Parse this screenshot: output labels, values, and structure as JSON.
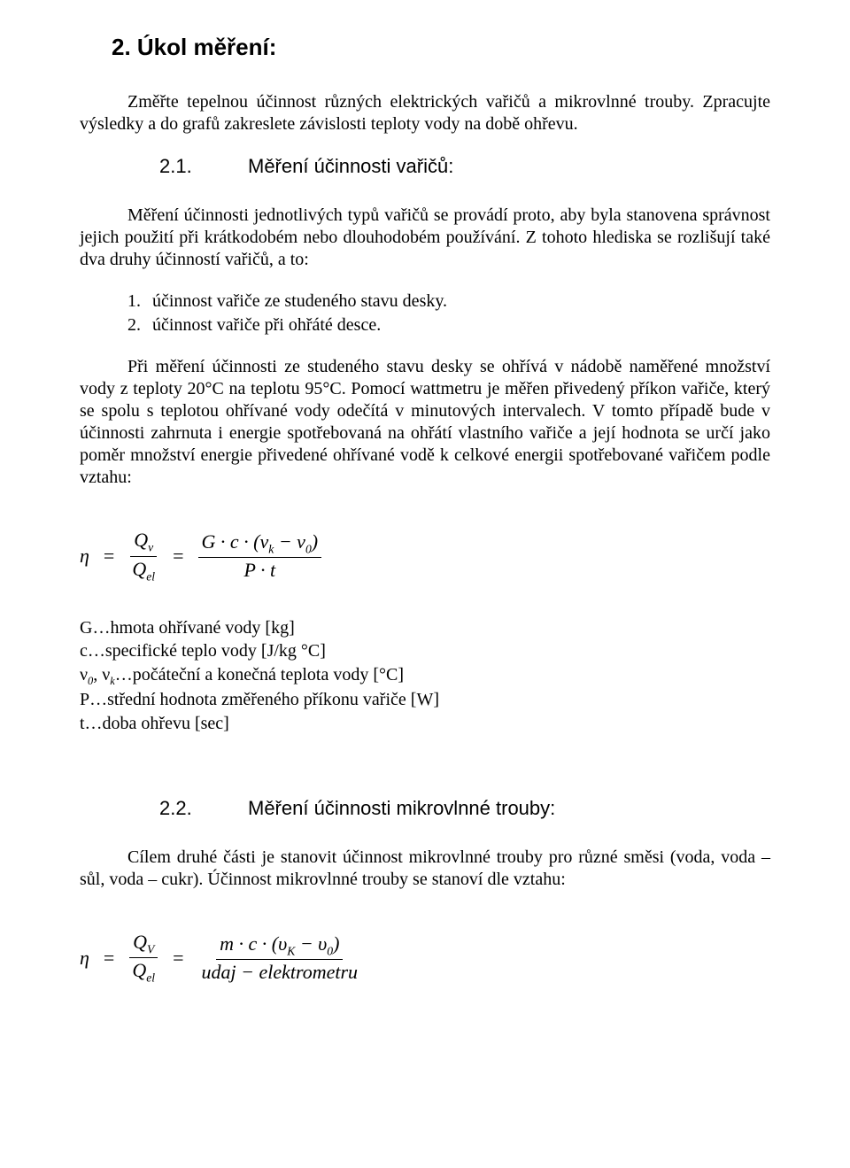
{
  "title": "2. Úkol měření:",
  "intro": "Změřte tepelnou účinnost různých elektrických vařičů a mikrovlnné trouby. Zpracujte výsledky a do grafů zakreslete závislosti teploty vody na době ohřevu.",
  "s1": {
    "num": "2.1.",
    "title": "Měření účinnosti vařičů:",
    "p1": "Měření účinnosti jednotlivých typů vařičů se provádí proto, aby byla stanovena správnost jejich použití při krátkodobém nebo dlouhodobém používání. Z tohoto hlediska se rozlišují také dva druhy účinností vařičů, a to:",
    "li1": "účinnost vařiče ze studeného stavu desky.",
    "li2": "účinnost vařiče při ohřáté desce.",
    "p2": "Při měření účinnosti ze studeného stavu desky se ohřívá v nádobě naměřené množství vody z teploty 20°C na teplotu 95°C. Pomocí wattmetru je měřen přivedený příkon vařiče, který se spolu s teplotou ohřívané vody odečítá v minutových intervalech. V tomto případě bude v účinnosti zahrnuta i energie spotřebovaná na ohřátí vlastního vařiče a její hodnota se určí jako poměr množství energie přivedené ohřívané vodě k celkové energii spotřebované vařičem podle vztahu:"
  },
  "formula1": {
    "eta": "η",
    "Qv": "Q",
    "Qv_sub": "v",
    "Qel": "Q",
    "Qel_sub": "el",
    "num": "G · c · (ν",
    "num_sub_k": "k",
    "num_mid": " − ν",
    "num_sub_0": "0",
    "num_close": ")",
    "den": "P · t"
  },
  "legend1": {
    "l1": "G…hmota ohřívané vody [kg]",
    "l2": "c…specifické teplo vody [J/kg °C]",
    "l3a": "ν",
    "l3a_sub": "0",
    "l3b": ", ν",
    "l3b_sub": "k",
    "l3c": "…počáteční a konečná teplota vody [°C]",
    "l4": "P…střední hodnota změřeného příkonu vařiče [W]",
    "l5": "t…doba ohřevu [sec]"
  },
  "s2": {
    "num": "2.2.",
    "title": "Měření účinnosti mikrovlnné trouby:",
    "p1": "Cílem druhé části je stanovit účinnost mikrovlnné trouby pro různé směsi (voda, voda – sůl, voda – cukr). Účinnost mikrovlnné trouby se stanoví dle vztahu:"
  },
  "formula2": {
    "eta": "η",
    "QV": "Q",
    "QV_sub": "V",
    "Qel": "Q",
    "Qel_sub": "el",
    "num": "m · c · (υ",
    "num_sub_K": "K",
    "num_mid": " − υ",
    "num_sub_0": "0",
    "num_close": ")",
    "den": "udaj − elektrometru"
  }
}
